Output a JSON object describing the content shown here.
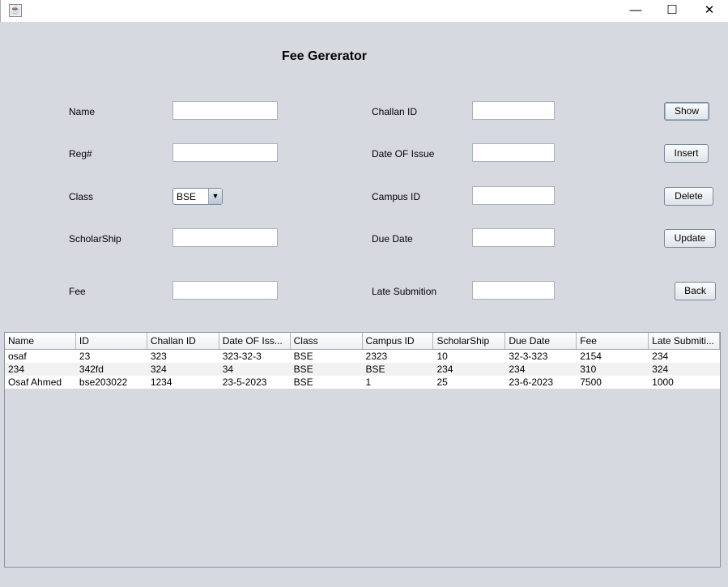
{
  "window": {
    "icon": "java-app-icon",
    "minimize": "—",
    "maximize": "☐",
    "close": "✕"
  },
  "form": {
    "title": "Fee Gererator",
    "labels": {
      "name": "Name",
      "reg": "Reg#",
      "class": "Class",
      "scholarship": "ScholarShip",
      "fee": "Fee",
      "challan_id": "Challan ID",
      "date_of_issue": "Date OF Issue",
      "campus_id": "Campus ID",
      "due_date": "Due Date",
      "late_submition": "Late Submition"
    },
    "class_value": "BSE",
    "buttons": {
      "show": "Show",
      "insert": "Insert",
      "delete": "Delete",
      "update": "Update",
      "back": "Back"
    }
  },
  "table": {
    "columns": [
      "Name",
      "ID",
      "Challan ID",
      "Date OF Iss...",
      "Class",
      "Campus ID",
      "ScholarShip",
      "Due Date",
      "Fee",
      "Late Submiti..."
    ],
    "rows": [
      [
        "osaf",
        "23",
        "323",
        "323-32-3",
        "BSE",
        "2323",
        "10",
        "32-3-323",
        "2154",
        "234"
      ],
      [
        "234",
        "342fd",
        "324",
        "34",
        "BSE",
        "BSE",
        "234",
        "234",
        "310",
        "324"
      ],
      [
        "Osaf Ahmed",
        "bse203022",
        "1234",
        "23-5-2023",
        "BSE",
        "1",
        "25",
        "23-6-2023",
        "7500",
        "1000"
      ]
    ]
  }
}
